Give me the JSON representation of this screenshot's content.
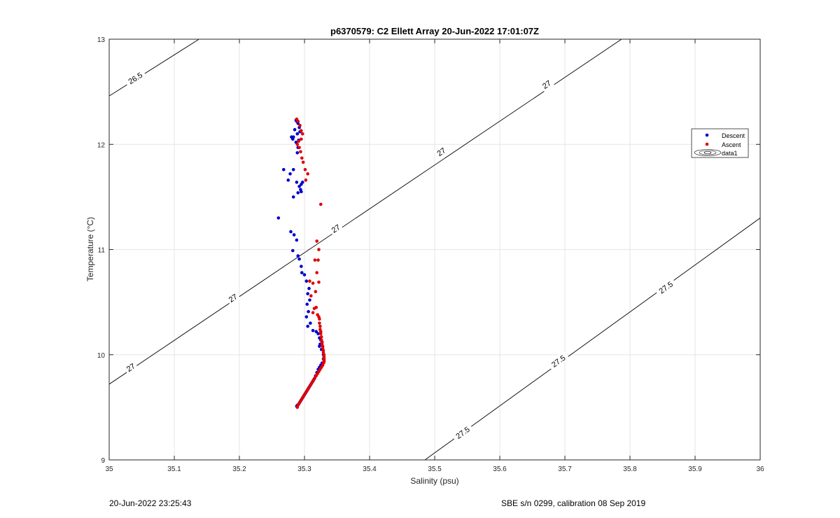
{
  "chart_data": {
    "type": "scatter",
    "title": "p6370579: C2 Ellett Array 20-Jun-2022 17:01:07Z",
    "xlabel": "Salinity (psu)",
    "ylabel": "Temperature (°C)",
    "xlim": [
      35,
      36
    ],
    "ylim": [
      9,
      13
    ],
    "xticks": [
      35,
      35.1,
      35.2,
      35.3,
      35.4,
      35.5,
      35.6,
      35.7,
      35.8,
      35.9,
      36
    ],
    "xtick_labels": [
      "35",
      "35.1",
      "35.2",
      "35.3",
      "35.4",
      "35.5",
      "35.6",
      "35.7",
      "35.8",
      "35.9",
      "36"
    ],
    "yticks": [
      9,
      10,
      11,
      12,
      13
    ],
    "ytick_labels": [
      "9",
      "10",
      "11",
      "12",
      "13"
    ],
    "grid": true,
    "legend_position": "right",
    "legend": [
      "Descent",
      "Ascent",
      "data1"
    ],
    "series": [
      {
        "name": "Descent",
        "color": "#0000cc",
        "x": [
          35.287,
          35.288,
          35.29,
          35.292,
          35.293,
          35.289,
          35.283,
          35.285,
          35.291,
          35.282,
          35.287,
          35.28,
          35.29,
          35.289,
          35.283,
          35.278,
          35.268,
          35.275,
          35.288,
          35.292,
          35.295,
          35.295,
          35.297,
          35.294,
          35.29,
          35.283,
          35.26,
          35.279,
          35.284,
          35.288,
          35.282,
          35.29,
          35.292,
          35.295,
          35.296,
          35.3,
          35.303,
          35.307,
          35.305,
          35.308,
          35.304,
          35.306,
          35.303,
          35.309,
          35.305,
          35.313,
          35.318,
          35.321,
          35.323,
          35.325,
          35.324,
          35.323,
          35.327,
          35.326,
          35.329,
          35.329,
          35.327,
          35.325,
          35.323,
          35.321,
          35.319,
          35.317,
          35.315,
          35.313,
          35.311,
          35.309,
          35.307,
          35.305,
          35.303,
          35.301,
          35.299,
          35.297,
          35.295,
          35.293,
          35.291,
          35.289,
          35.288
        ],
        "y": [
          12.23,
          12.22,
          12.2,
          12.16,
          12.12,
          12.1,
          12.07,
          12.14,
          12.04,
          12.05,
          12.02,
          12.07,
          11.97,
          11.92,
          11.76,
          11.72,
          11.76,
          11.66,
          11.64,
          11.6,
          11.62,
          11.55,
          11.64,
          11.57,
          11.54,
          11.5,
          11.3,
          11.17,
          11.14,
          11.09,
          10.99,
          10.94,
          10.91,
          10.84,
          10.78,
          10.76,
          10.7,
          10.63,
          10.58,
          10.52,
          10.48,
          10.41,
          10.36,
          10.3,
          10.27,
          10.23,
          10.22,
          10.2,
          10.16,
          10.14,
          10.1,
          10.08,
          10.12,
          10.05,
          10.0,
          9.96,
          9.92,
          9.9,
          9.88,
          9.86,
          9.83,
          9.8,
          9.77,
          9.75,
          9.73,
          9.71,
          9.69,
          9.67,
          9.65,
          9.63,
          9.61,
          9.59,
          9.57,
          9.55,
          9.53,
          9.52,
          9.51
        ]
      },
      {
        "name": "Ascent",
        "color": "#e00000",
        "x": [
          35.288,
          35.29,
          35.293,
          35.295,
          35.297,
          35.295,
          35.291,
          35.289,
          35.292,
          35.294,
          35.296,
          35.298,
          35.301,
          35.305,
          35.302,
          35.325,
          35.319,
          35.322,
          35.321,
          35.316,
          35.319,
          35.308,
          35.322,
          35.313,
          35.317,
          35.31,
          35.318,
          35.315,
          35.313,
          35.32,
          35.322,
          35.323,
          35.323,
          35.324,
          35.324,
          35.325,
          35.325,
          35.326,
          35.326,
          35.327,
          35.327,
          35.328,
          35.328,
          35.329,
          35.329,
          35.33,
          35.33,
          35.33,
          35.33,
          35.33,
          35.33,
          35.33,
          35.329,
          35.328,
          35.326,
          35.324,
          35.322,
          35.32,
          35.318,
          35.316,
          35.314,
          35.312,
          35.31,
          35.308,
          35.306,
          35.304,
          35.302,
          35.3,
          35.298,
          35.296,
          35.294,
          35.292,
          35.29,
          35.289
        ],
        "y": [
          12.24,
          12.22,
          12.18,
          12.13,
          12.1,
          12.05,
          12.03,
          12.0,
          11.97,
          11.93,
          11.87,
          11.83,
          11.76,
          11.72,
          11.66,
          11.43,
          11.08,
          11.0,
          10.9,
          10.9,
          10.78,
          10.7,
          10.69,
          10.68,
          10.6,
          10.56,
          10.45,
          10.44,
          10.4,
          10.38,
          10.36,
          10.34,
          10.3,
          10.27,
          10.24,
          10.22,
          10.2,
          10.17,
          10.14,
          10.12,
          10.1,
          10.08,
          10.06,
          10.04,
          10.02,
          10.0,
          9.98,
          9.97,
          9.96,
          9.95,
          9.94,
          9.93,
          9.92,
          9.9,
          9.88,
          9.86,
          9.84,
          9.82,
          9.8,
          9.78,
          9.76,
          9.74,
          9.72,
          9.7,
          9.68,
          9.66,
          9.64,
          9.62,
          9.6,
          9.58,
          9.56,
          9.54,
          9.52,
          9.5
        ]
      }
    ],
    "contours": [
      {
        "value": 26.5,
        "points": [
          [
            35,
            12.46
          ],
          [
            35.138,
            13
          ]
        ],
        "labels": [
          {
            "text": "26.5",
            "x": 35.04,
            "y": 12.63
          }
        ]
      },
      {
        "value": 27,
        "points": [
          [
            35,
            9.72
          ],
          [
            35.787,
            13
          ]
        ],
        "labels": [
          {
            "text": "27",
            "x": 35.033,
            "y": 9.88
          },
          {
            "text": "27",
            "x": 35.19,
            "y": 10.54
          },
          {
            "text": "27",
            "x": 35.348,
            "y": 11.2
          },
          {
            "text": "27",
            "x": 35.51,
            "y": 11.93
          },
          {
            "text": "27",
            "x": 35.672,
            "y": 12.57
          }
        ]
      },
      {
        "value": 27.5,
        "points": [
          [
            35.485,
            9
          ],
          [
            36,
            11.3
          ]
        ],
        "labels": [
          {
            "text": "27.5",
            "x": 35.543,
            "y": 9.26
          },
          {
            "text": "27.5",
            "x": 35.69,
            "y": 9.94
          },
          {
            "text": "27.5",
            "x": 35.855,
            "y": 10.64
          }
        ]
      }
    ]
  },
  "footer": {
    "timestamp": "20-Jun-2022 23:25:43",
    "instrument": "SBE s/n 0299, calibration 08 Sep 2019"
  }
}
